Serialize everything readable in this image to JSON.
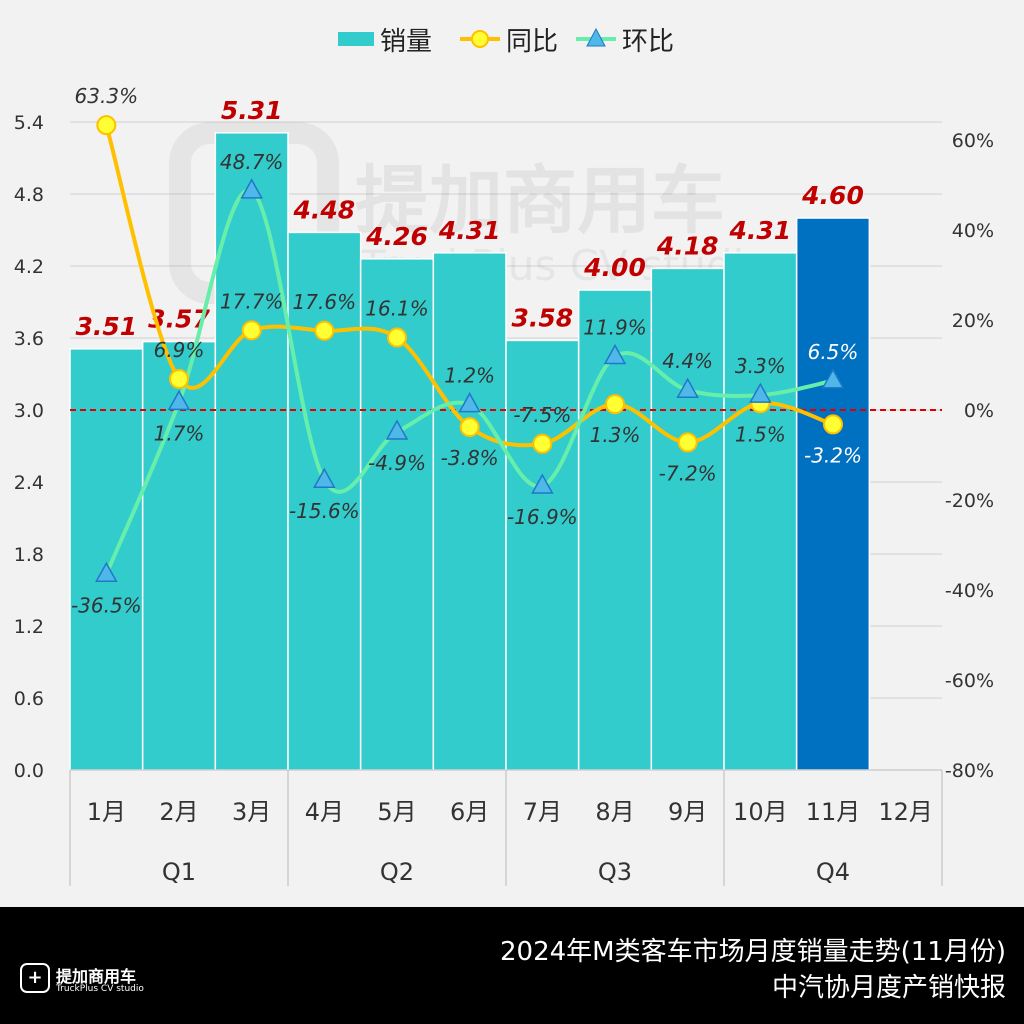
{
  "chart_data": {
    "type": "bar+line",
    "title": "2024年M类客车市场月度销量走势(11月份)",
    "subtitle": "中汽协月度产销快报",
    "categories": [
      "1月",
      "2月",
      "3月",
      "4月",
      "5月",
      "6月",
      "7月",
      "8月",
      "9月",
      "10月",
      "11月",
      "12月"
    ],
    "quarters": [
      "Q1",
      "Q2",
      "Q3",
      "Q4"
    ],
    "legend": [
      "销量",
      "同比",
      "环比"
    ],
    "legend_position": "top",
    "series": [
      {
        "name": "销量",
        "type": "bar",
        "axis": "left",
        "values": [
          3.51,
          3.57,
          5.31,
          4.48,
          4.26,
          4.31,
          3.58,
          4.0,
          4.18,
          4.31,
          4.6,
          null
        ],
        "labels": [
          "3.51",
          "3.57",
          "5.31",
          "4.48",
          "4.26",
          "4.31",
          "3.58",
          "4.00",
          "4.18",
          "4.31",
          "4.60",
          ""
        ]
      },
      {
        "name": "同比",
        "type": "line",
        "axis": "right",
        "values": [
          63.3,
          6.9,
          17.7,
          17.6,
          16.1,
          -3.8,
          -7.5,
          1.3,
          -7.2,
          1.5,
          -3.2,
          null
        ],
        "labels": [
          "63.3%",
          "6.9%",
          "17.7%",
          "17.6%",
          "16.1%",
          "-3.8%",
          "-7.5%",
          "1.3%",
          "-7.2%",
          "1.5%",
          "-3.2%",
          ""
        ]
      },
      {
        "name": "环比",
        "type": "line",
        "axis": "right",
        "values": [
          -36.5,
          1.7,
          48.7,
          -15.6,
          -4.9,
          1.2,
          -16.9,
          11.9,
          4.4,
          3.3,
          6.5,
          null
        ],
        "labels": [
          "-36.5%",
          "1.7%",
          "48.7%",
          "-15.6%",
          "-4.9%",
          "1.2%",
          "-16.9%",
          "11.9%",
          "4.4%",
          "3.3%",
          "6.5%",
          ""
        ]
      }
    ],
    "left_axis": {
      "ylim": [
        0,
        5.4
      ],
      "ticks": [
        "0.0",
        "0.6",
        "1.2",
        "1.8",
        "2.4",
        "3.0",
        "3.6",
        "4.2",
        "4.8",
        "5.4"
      ]
    },
    "right_axis": {
      "ylim": [
        -80,
        60
      ],
      "ticks": [
        "-80%",
        "-60%",
        "-40%",
        "-20%",
        "0%",
        "20%",
        "40%",
        "60%"
      ]
    },
    "grid": true,
    "colors": {
      "bar": "#33CCCC",
      "bar_highlight": "#0070C0",
      "yoy_line": "#FFC000",
      "yoy_marker": "#FFFF33",
      "mom_line": "#66EEAA",
      "mom_marker": "#4FB8E8",
      "value_label": "#C00000",
      "zero_line": "#E00000"
    }
  },
  "watermark": {
    "cn": "提加商用车",
    "en": "TruckPlus CV studio"
  },
  "footer": {
    "title": "2024年M类客车市场月度销量走势(11月份)",
    "subtitle": "中汽协月度产销快报",
    "logo_cn": "提加商用车",
    "logo_en": "TruckPlus CV studio"
  }
}
